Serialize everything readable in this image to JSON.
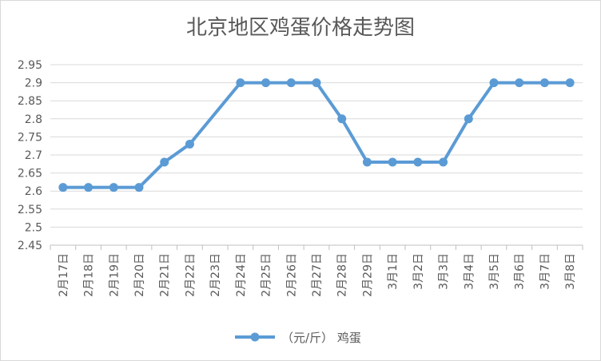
{
  "chart_data": {
    "type": "line",
    "title": "北京地区鸡蛋价格走势图",
    "xlabel": "",
    "ylabel": "",
    "categories": [
      "2月17日",
      "2月18日",
      "2月19日",
      "2月20日",
      "2月21日",
      "2月22日",
      "2月23日",
      "2月24日",
      "2月25日",
      "2月26日",
      "2月27日",
      "2月28日",
      "2月29日",
      "3月1日",
      "3月2日",
      "3月3日",
      "3月4日",
      "3月5日",
      "3月6日",
      "3月7日",
      "3月8日"
    ],
    "series": [
      {
        "name": "（元/斤） 鸡蛋",
        "values": [
          2.61,
          2.61,
          2.61,
          2.61,
          2.68,
          2.73,
          null,
          2.9,
          2.9,
          2.9,
          2.9,
          2.8,
          2.68,
          2.68,
          2.68,
          2.68,
          2.8,
          2.9,
          2.9,
          2.9,
          2.9
        ]
      }
    ],
    "ylim": [
      2.45,
      2.95
    ],
    "yticks": [
      "2.95",
      "2.9",
      "2.85",
      "2.8",
      "2.75",
      "2.7",
      "2.65",
      "2.6",
      "2.55",
      "2.5",
      "2.45"
    ],
    "grid": true,
    "legend_position": "bottom",
    "series_color": "#5b9bd5",
    "grid_color": "#d9d9d9",
    "text_color": "#595959"
  }
}
